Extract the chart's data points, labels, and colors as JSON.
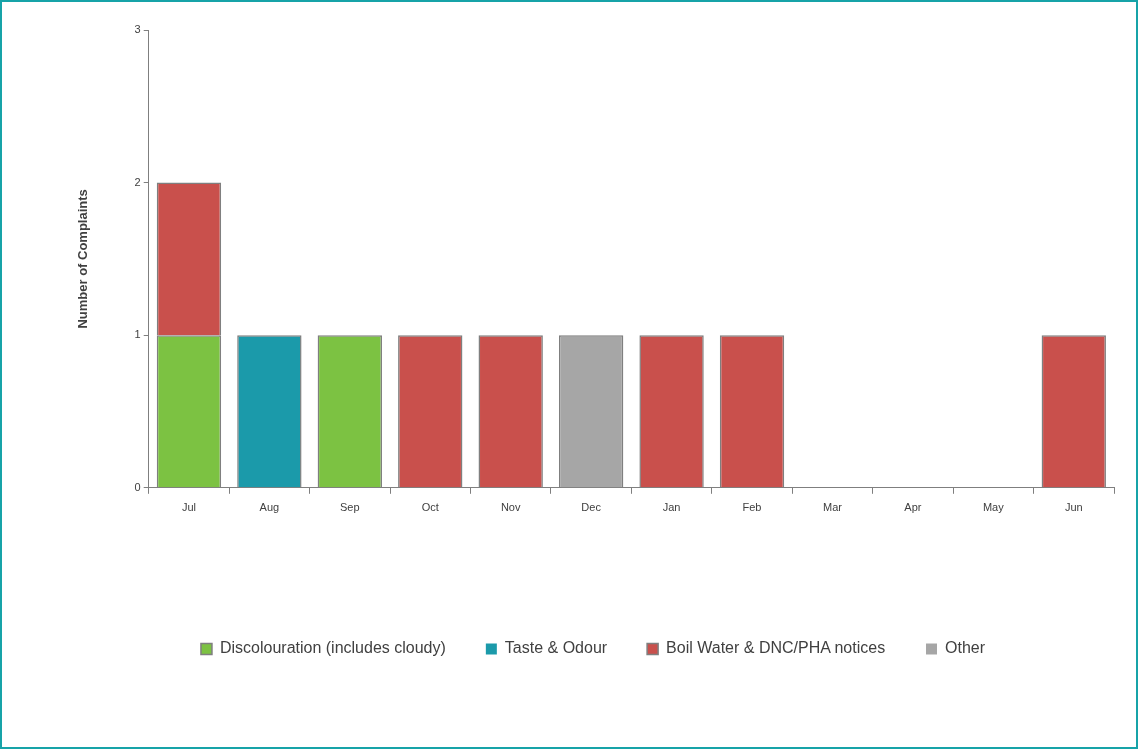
{
  "chart_data": {
    "type": "bar",
    "stacked": true,
    "ylabel": "Number of Complaints",
    "categories": [
      "Jul",
      "Aug",
      "Sep",
      "Oct",
      "Nov",
      "Dec",
      "Jan",
      "Feb",
      "Mar",
      "Apr",
      "May",
      "Jun"
    ],
    "series": [
      {
        "name": "Discolouration (includes cloudy)",
        "color": "#7cc242",
        "values": [
          1,
          0,
          1,
          0,
          0,
          0,
          0,
          0,
          0,
          0,
          0,
          0
        ]
      },
      {
        "name": "Taste & Odour",
        "color": "#1b9aaa",
        "values": [
          0,
          1,
          0,
          0,
          0,
          0,
          0,
          0,
          0,
          0,
          0,
          0
        ]
      },
      {
        "name": "Boil Water & DNC/PHA notices",
        "color": "#c9504c",
        "values": [
          1,
          0,
          0,
          1,
          1,
          0,
          1,
          1,
          0,
          0,
          0,
          1
        ]
      },
      {
        "name": "Other",
        "color": "#a6a6a6",
        "values": [
          0,
          0,
          0,
          0,
          0,
          1,
          0,
          0,
          0,
          0,
          0,
          0
        ]
      }
    ],
    "ylim": [
      0,
      3
    ],
    "yticks": [
      0,
      1,
      2,
      3
    ],
    "grid": false,
    "legend": "bottom"
  }
}
